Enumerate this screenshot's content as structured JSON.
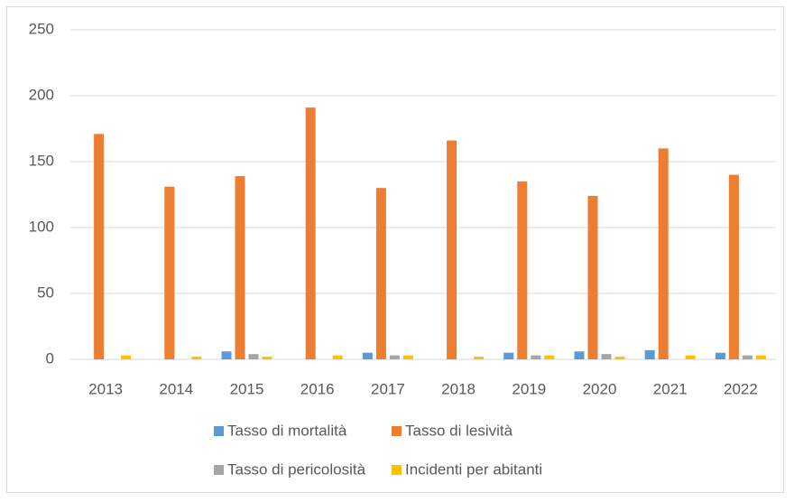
{
  "chart_data": {
    "type": "bar",
    "categories": [
      "2013",
      "2014",
      "2015",
      "2016",
      "2017",
      "2018",
      "2019",
      "2020",
      "2021",
      "2022"
    ],
    "series": [
      {
        "name": "Tasso di mortalità",
        "color": "#5b9bd5",
        "values": [
          0,
          0,
          6,
          0,
          5,
          0,
          5,
          6,
          7,
          5
        ]
      },
      {
        "name": "Tasso di lesività",
        "color": "#ed7d31",
        "values": [
          171,
          131,
          139,
          191,
          130,
          166,
          135,
          124,
          160,
          140
        ]
      },
      {
        "name": "Tasso di pericolosità",
        "color": "#a5a5a5",
        "values": [
          0,
          0,
          4,
          0,
          3,
          0,
          3,
          4,
          0,
          3
        ]
      },
      {
        "name": "Incidenti per abitanti",
        "color": "#ffc000",
        "values": [
          3,
          2,
          2,
          3,
          3,
          2,
          3,
          2,
          3,
          3
        ]
      }
    ],
    "ylim": [
      0,
      250
    ],
    "yticks": [
      0,
      50,
      100,
      150,
      200,
      250
    ],
    "grid": true,
    "legend": "bottom"
  }
}
